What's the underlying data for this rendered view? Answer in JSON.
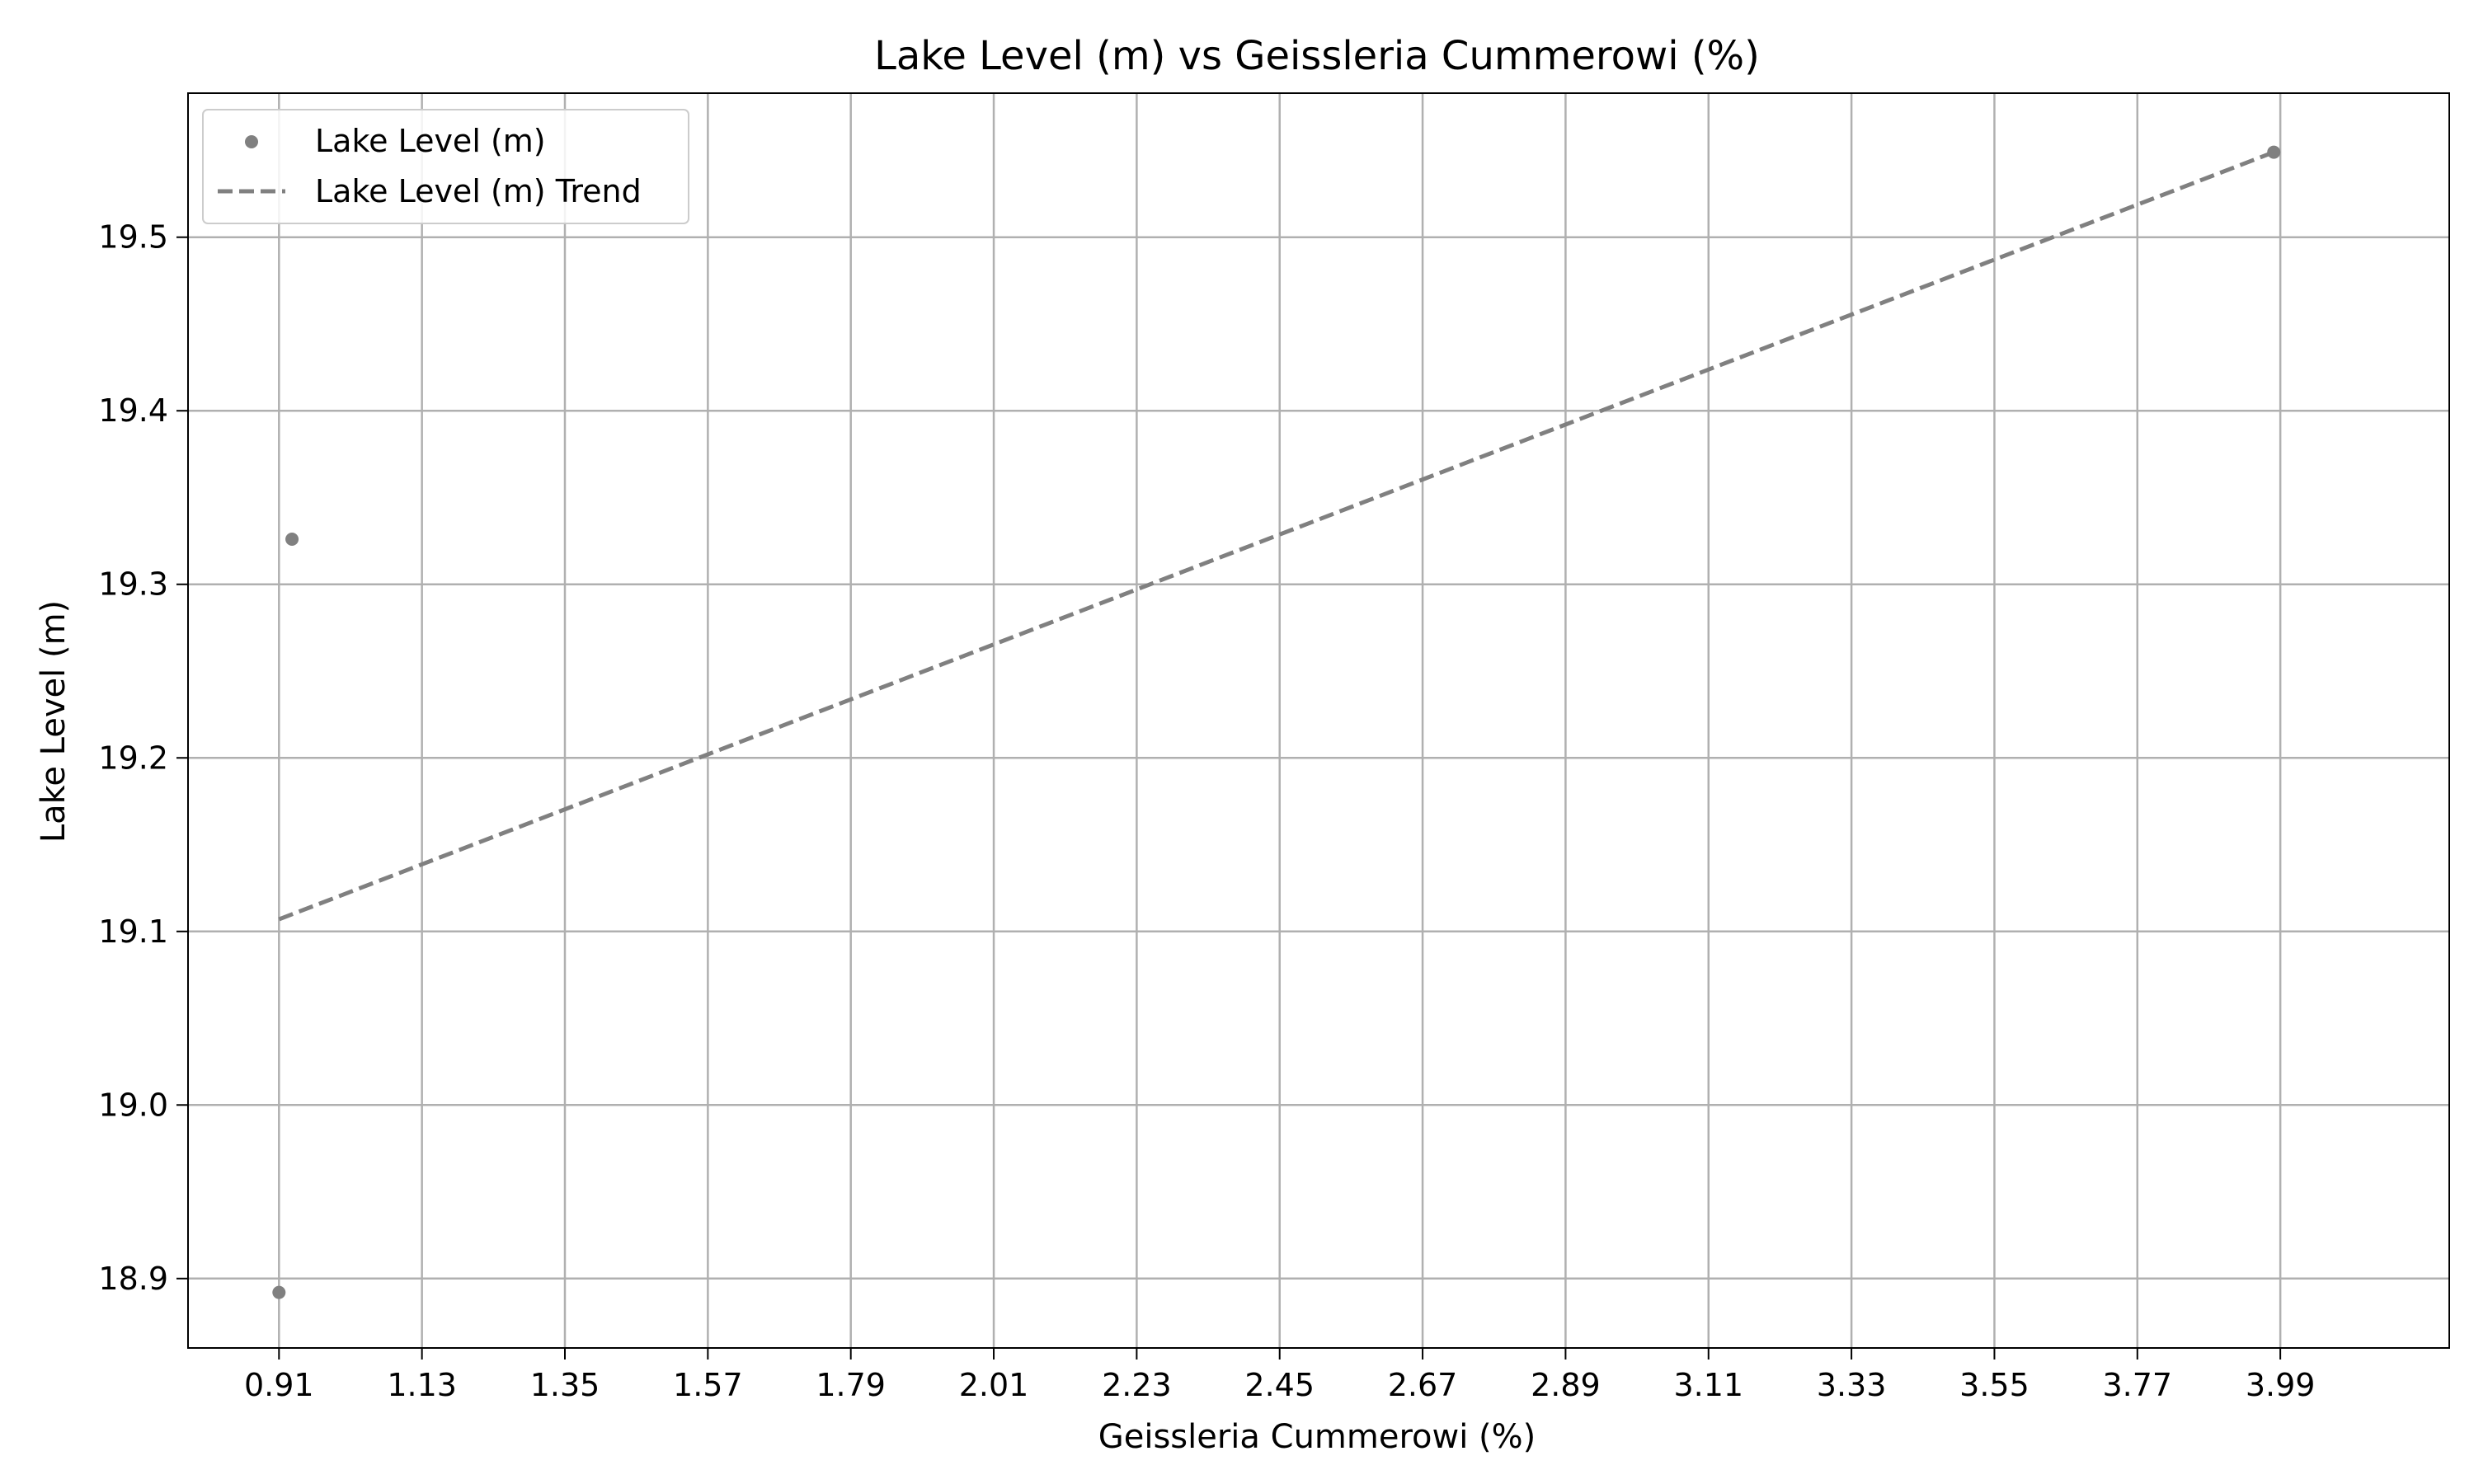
{
  "chart_data": {
    "type": "scatter",
    "title": "Lake Level (m) vs Geissleria Cummerowi (%)",
    "xlabel": "Geissleria Cummerowi (%)",
    "ylabel": "Lake Level (m)",
    "xlim": [
      0.77,
      4.25
    ],
    "ylim": [
      18.86,
      19.583
    ],
    "xticks": [
      "0.91",
      "1.13",
      "1.35",
      "1.57",
      "1.79",
      "2.01",
      "2.23",
      "2.45",
      "2.67",
      "2.89",
      "3.11",
      "3.33",
      "3.55",
      "3.77",
      "3.99"
    ],
    "yticks": [
      "18.9",
      "19.0",
      "19.1",
      "19.2",
      "19.3",
      "19.4",
      "19.5"
    ],
    "grid": true,
    "legend_position": "top-left",
    "series": [
      {
        "name": "Lake Level (m)",
        "kind": "scatter",
        "color": "#808080",
        "points": [
          {
            "x": 0.91,
            "y": 18.892
          },
          {
            "x": 0.93,
            "y": 19.326
          },
          {
            "x": 3.98,
            "y": 19.549
          }
        ]
      },
      {
        "name": "Lake Level (m) Trend",
        "kind": "line",
        "style": "dashed",
        "color": "#808080",
        "points": [
          {
            "x": 0.91,
            "y": 19.107
          },
          {
            "x": 3.98,
            "y": 19.549
          }
        ]
      }
    ]
  }
}
